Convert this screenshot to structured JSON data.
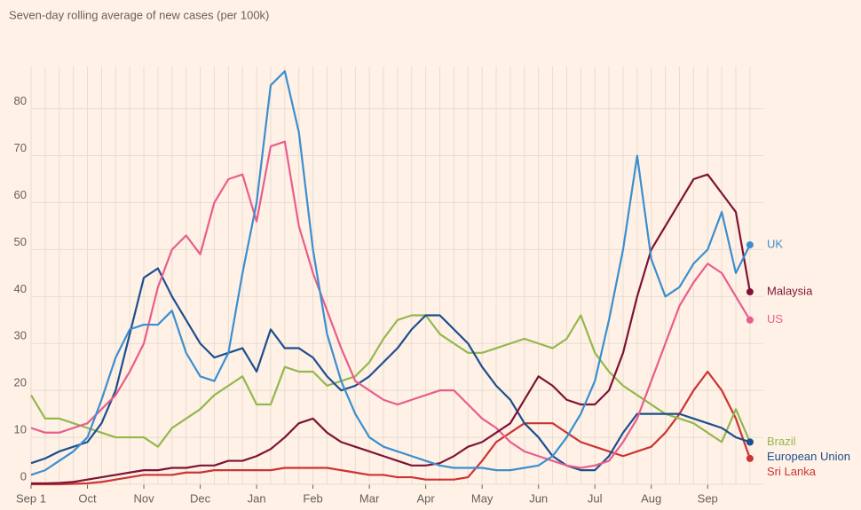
{
  "chart_data": {
    "type": "line",
    "title": "Seven-day rolling average of new cases (per 100k)",
    "categories": [
      "Sep 1",
      null,
      null,
      null,
      "Oct",
      null,
      null,
      null,
      "Nov",
      null,
      null,
      null,
      "Dec",
      null,
      null,
      null,
      "Jan",
      null,
      null,
      null,
      "Feb",
      null,
      null,
      null,
      "Mar",
      null,
      null,
      null,
      "Apr",
      null,
      null,
      null,
      "May",
      null,
      null,
      null,
      "Jun",
      null,
      null,
      null,
      "Jul",
      null,
      null,
      null,
      "Aug",
      null,
      null,
      null,
      "Sep",
      null,
      null,
      null
    ],
    "ylim": [
      0,
      89
    ],
    "yticks": [
      0,
      10,
      20,
      30,
      40,
      50,
      60,
      70,
      80
    ],
    "grid": true,
    "legend": "end",
    "series": [
      {
        "name": "Sri Lanka",
        "color": "#cc3333",
        "values": [
          0,
          0,
          0,
          0.1,
          0.2,
          0.5,
          1,
          1.5,
          2,
          2,
          2,
          2.5,
          2.5,
          3,
          3,
          3,
          3,
          3,
          3.5,
          3.5,
          3.5,
          3.5,
          3,
          2.5,
          2,
          2,
          1.5,
          1.5,
          1,
          1,
          1,
          1.5,
          5,
          9,
          11,
          13,
          13,
          13,
          11,
          9,
          8,
          7,
          6,
          7,
          8,
          11,
          15,
          20,
          24,
          20,
          14,
          5.5
        ]
      },
      {
        "name": "Brazil",
        "color": "#94b74e",
        "values": [
          19,
          14,
          14,
          13,
          12,
          11,
          10,
          10,
          10,
          8,
          12,
          14,
          16,
          19,
          21,
          23,
          17,
          17,
          25,
          24,
          24,
          21,
          22,
          23,
          26,
          31,
          35,
          36,
          36,
          32,
          30,
          28,
          28,
          29,
          30,
          31,
          30,
          29,
          31,
          36,
          28,
          24,
          21,
          19,
          17,
          15,
          14,
          13,
          11,
          9,
          16,
          9
        ]
      },
      {
        "name": "European Union",
        "color": "#1c4f8f",
        "values": [
          4.5,
          5.5,
          7,
          8,
          9,
          13,
          20,
          32,
          44,
          46,
          40,
          35,
          30,
          27,
          28,
          29,
          24,
          33,
          29,
          29,
          27,
          23,
          20,
          21,
          23,
          26,
          29,
          33,
          36,
          36,
          33,
          30,
          25,
          21,
          18,
          13,
          10,
          6,
          4,
          3,
          3,
          6,
          11,
          15,
          15,
          15,
          15,
          14,
          13,
          12,
          10,
          9
        ]
      },
      {
        "name": "US",
        "color": "#e95d8c",
        "values": [
          12,
          11,
          11,
          12,
          13,
          16,
          19,
          24,
          30,
          42,
          50,
          53,
          49,
          60,
          65,
          66,
          56,
          72,
          73,
          55,
          45,
          37,
          29,
          22,
          20,
          18,
          17,
          18,
          19,
          20,
          20,
          17,
          14,
          12,
          9,
          7,
          6,
          5,
          4,
          3.5,
          4,
          5,
          9,
          14,
          22,
          30,
          38,
          43,
          47,
          45,
          40,
          35
        ]
      },
      {
        "name": "Malaysia",
        "color": "#7d1336",
        "values": [
          0.2,
          0.2,
          0.3,
          0.5,
          1,
          1.5,
          2,
          2.5,
          3,
          3,
          3.5,
          3.5,
          4,
          4,
          5,
          5,
          6,
          7.5,
          10,
          13,
          14,
          11,
          9,
          8,
          7,
          6,
          5,
          4,
          4,
          4.5,
          6,
          8,
          9,
          11,
          13,
          18,
          23,
          21,
          18,
          17,
          17,
          20,
          28,
          40,
          50,
          55,
          60,
          65,
          66,
          62,
          58,
          41
        ]
      },
      {
        "name": "UK",
        "color": "#3a8fd0",
        "values": [
          2,
          3,
          5,
          7,
          10,
          18,
          27,
          33,
          34,
          34,
          37,
          28,
          23,
          22,
          28,
          45,
          60,
          85,
          88,
          75,
          50,
          32,
          22,
          15,
          10,
          8,
          7,
          6,
          5,
          4,
          3.5,
          3.5,
          3.5,
          3,
          3,
          3.5,
          4,
          6,
          10,
          15,
          22,
          35,
          50,
          70,
          48,
          40,
          42,
          47,
          50,
          58,
          45,
          51
        ]
      }
    ]
  }
}
